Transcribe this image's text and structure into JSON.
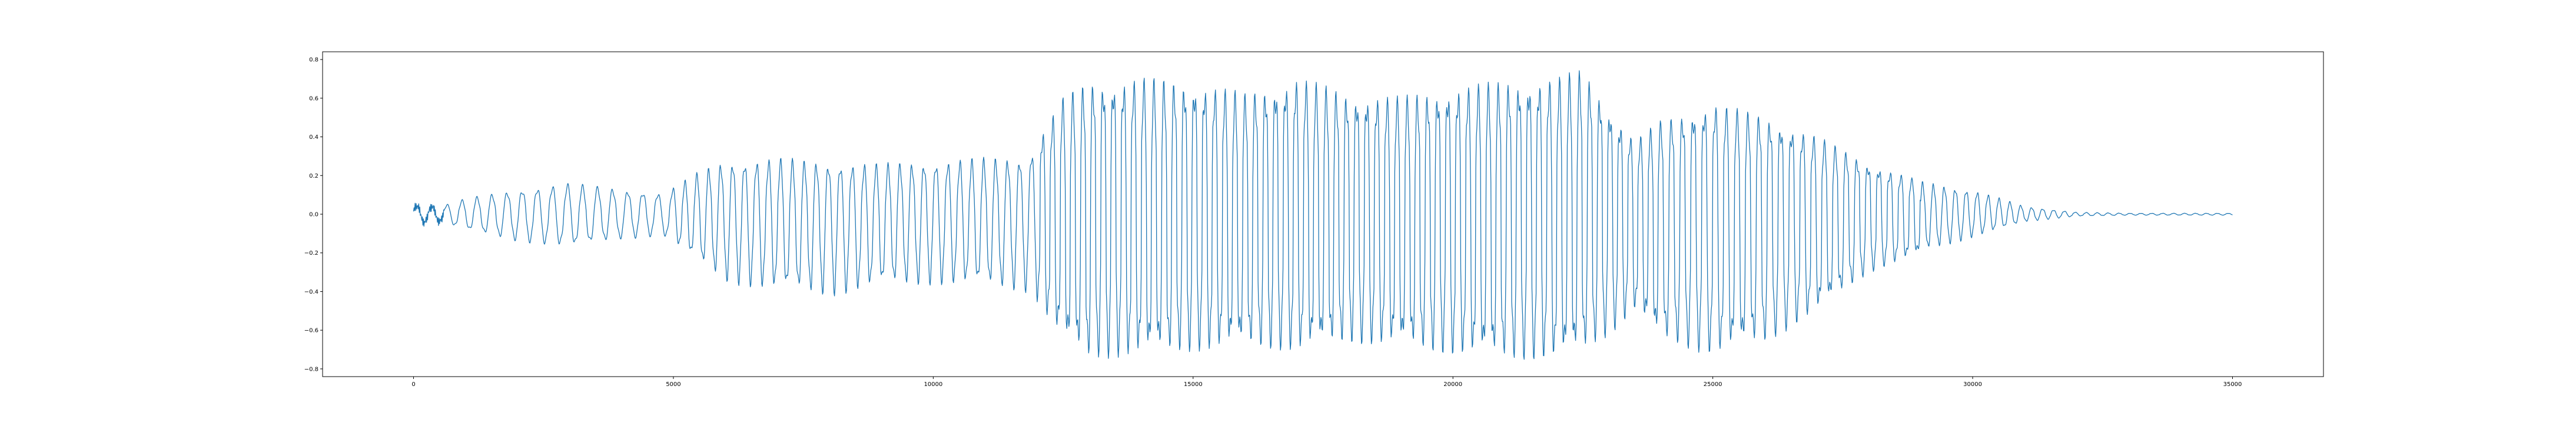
{
  "chart_data": {
    "type": "line",
    "title": "",
    "xlabel": "",
    "ylabel": "",
    "xlim": [
      -1750,
      36750
    ],
    "ylim": [
      -0.84,
      0.84
    ],
    "x_ticks": [
      0,
      5000,
      10000,
      15000,
      20000,
      25000,
      30000,
      35000
    ],
    "x_tick_labels": [
      "0",
      "5000",
      "10000",
      "15000",
      "20000",
      "25000",
      "30000",
      "35000"
    ],
    "y_ticks": [
      -0.8,
      -0.6,
      -0.4,
      -0.2,
      0.0,
      0.2,
      0.4,
      0.6,
      0.8
    ],
    "y_tick_labels": [
      "−0.8",
      "−0.6",
      "−0.4",
      "−0.2",
      "0.0",
      "0.2",
      "0.4",
      "0.6",
      "0.8"
    ],
    "grid": false,
    "legend": "none",
    "series": [
      {
        "color": "#1f77b4",
        "n_samples": 35000,
        "envelope_x": [
          0,
          500,
          1000,
          2000,
          3000,
          4000,
          4800,
          5000,
          5500,
          6000,
          7000,
          8000,
          9000,
          10000,
          11000,
          11800,
          12000,
          12500,
          13000,
          14000,
          15000,
          16000,
          17000,
          18000,
          19000,
          20000,
          21000,
          22000,
          22500,
          23000,
          23500,
          24000,
          25000,
          26000,
          27000,
          28000,
          29000,
          30000,
          31000,
          32000,
          33000,
          35000
        ],
        "envelope_max": [
          0.05,
          0.04,
          0.08,
          0.13,
          0.16,
          0.13,
          0.11,
          0.14,
          0.22,
          0.28,
          0.29,
          0.27,
          0.26,
          0.28,
          0.29,
          0.3,
          0.38,
          0.6,
          0.68,
          0.7,
          0.68,
          0.62,
          0.7,
          0.62,
          0.6,
          0.65,
          0.68,
          0.7,
          0.74,
          0.55,
          0.38,
          0.48,
          0.57,
          0.5,
          0.4,
          0.26,
          0.17,
          0.13,
          0.04,
          0.01,
          0.005,
          0.005
        ],
        "envelope_min": [
          -0.05,
          -0.04,
          -0.08,
          -0.14,
          -0.17,
          -0.13,
          -0.11,
          -0.15,
          -0.25,
          -0.35,
          -0.4,
          -0.42,
          -0.38,
          -0.36,
          -0.38,
          -0.4,
          -0.45,
          -0.65,
          -0.74,
          -0.72,
          -0.7,
          -0.68,
          -0.7,
          -0.66,
          -0.68,
          -0.72,
          -0.74,
          -0.75,
          -0.7,
          -0.62,
          -0.5,
          -0.65,
          -0.72,
          -0.66,
          -0.5,
          -0.3,
          -0.2,
          -0.12,
          -0.04,
          -0.01,
          -0.005,
          -0.005
        ]
      }
    ]
  }
}
